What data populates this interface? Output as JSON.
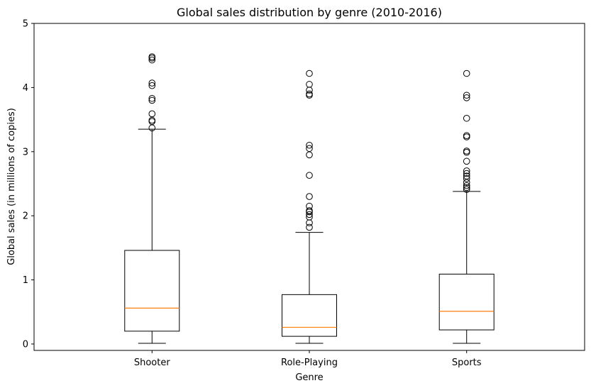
{
  "chart_data": {
    "type": "box",
    "title": "Global sales distribution by genre (2010-2016)",
    "xlabel": "Genre",
    "ylabel": "Global sales (in millions of copies)",
    "ylim": [
      -0.1,
      5
    ],
    "yticks": [
      0,
      1,
      2,
      3,
      4,
      5
    ],
    "grid": false,
    "colors": {
      "box": "#000000",
      "median": "#ff7f0e",
      "background": "#ffffff"
    },
    "categories": [
      "Shooter",
      "Role-Playing",
      "Sports"
    ],
    "series": [
      {
        "category": "Shooter",
        "whisker_low": 0.01,
        "q1": 0.2,
        "median": 0.56,
        "q3": 1.46,
        "whisker_high": 3.35,
        "outliers": [
          3.37,
          3.47,
          3.49,
          3.59,
          3.8,
          3.83,
          4.03,
          4.07,
          4.43,
          4.46,
          4.48
        ]
      },
      {
        "category": "Role-Playing",
        "whisker_low": 0.01,
        "q1": 0.12,
        "median": 0.26,
        "q3": 0.77,
        "whisker_high": 1.74,
        "outliers": [
          1.82,
          1.89,
          1.98,
          2.02,
          2.06,
          2.08,
          2.15,
          2.3,
          2.63,
          2.95,
          3.05,
          3.1,
          3.88,
          3.9,
          3.96,
          4.05,
          4.22
        ]
      },
      {
        "category": "Sports",
        "whisker_low": 0.01,
        "q1": 0.22,
        "median": 0.51,
        "q3": 1.09,
        "whisker_high": 2.38,
        "outliers": [
          2.41,
          2.44,
          2.47,
          2.52,
          2.58,
          2.62,
          2.66,
          2.7,
          2.85,
          2.99,
          3.01,
          3.23,
          3.25,
          3.52,
          3.84,
          3.88,
          4.22
        ]
      }
    ]
  }
}
